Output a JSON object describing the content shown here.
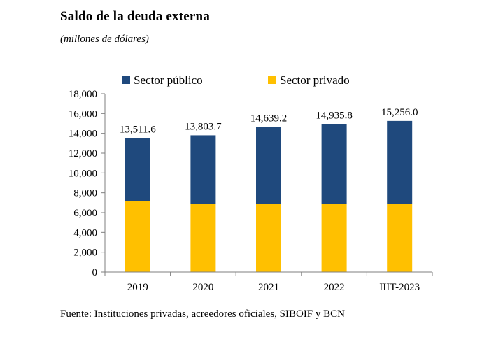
{
  "chart_data": {
    "type": "bar",
    "stacked": true,
    "title": "Saldo de la deuda externa",
    "subtitle": "(millones de dólares)",
    "source": "Fuente: Instituciones privadas, acreedores oficiales, SIBOIF y BCN",
    "categories": [
      "2019",
      "2020",
      "2021",
      "2022",
      "IIIT-2023"
    ],
    "series": [
      {
        "name": "Sector privado",
        "color": "#FFC000",
        "values": [
          7200,
          6850,
          6850,
          6850,
          6850
        ]
      },
      {
        "name": "Sector público",
        "color": "#1F497D",
        "values": [
          6311.6,
          6953.7,
          7789.2,
          8085.8,
          8406.0
        ]
      }
    ],
    "totals": [
      13511.6,
      13803.7,
      14639.2,
      14935.8,
      15256.0
    ],
    "total_labels": [
      "13,511.6",
      "13,803.7",
      "14,639.2",
      "14,935.8",
      "15,256.0"
    ],
    "legend_order": [
      "Sector público",
      "Sector privado"
    ],
    "legend_position": "top",
    "ylim": [
      0,
      18000
    ],
    "yticks": [
      0,
      2000,
      4000,
      6000,
      8000,
      10000,
      12000,
      14000,
      16000,
      18000
    ],
    "ytick_labels": [
      "0",
      "2,000",
      "4,000",
      "6,000",
      "8,000",
      "10,000",
      "12,000",
      "14,000",
      "16,000",
      "18,000"
    ],
    "grid": false
  }
}
